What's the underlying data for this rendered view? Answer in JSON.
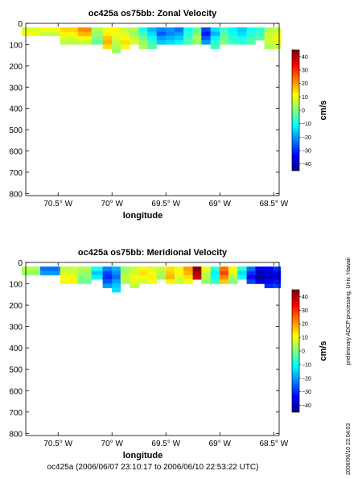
{
  "footer": "oc425a (2006/06/07 23:10:17 to 2006/06/10 22:53:22 UTC)",
  "side_text": {
    "processing": "preliminary ADCP processing,   Univ. Hawaii",
    "date": "2006/06/10 23:04:03"
  },
  "colors": {
    "colormap": [
      "#00008f",
      "#0000ff",
      "#0080ff",
      "#00ffff",
      "#80ff80",
      "#ffff00",
      "#ff8000",
      "#ff0000",
      "#800000"
    ],
    "contour": "#000000"
  },
  "chart_data": [
    {
      "type": "heatmap",
      "title": "oc425a os75bb: Zonal Velocity",
      "xlabel": "longitude",
      "ylabel": "",
      "xlim": [
        -70.8,
        -68.45
      ],
      "ylim": [
        810,
        0
      ],
      "x_ticks": [
        -70.5,
        -70.0,
        -69.5,
        -69.0,
        -68.5
      ],
      "x_tick_labels": [
        "70.5° W",
        "70° W",
        "69.5° W",
        "69° W",
        "68.5° W"
      ],
      "y_ticks": [
        0,
        100,
        200,
        300,
        400,
        500,
        600,
        700,
        800
      ],
      "y_tick_labels": [
        "0",
        "100",
        "200",
        "300",
        "400",
        "500",
        "600",
        "700",
        "800"
      ],
      "colorbar": {
        "label": "cm/s",
        "range": [
          -45,
          45
        ],
        "ticks": [
          40,
          30,
          20,
          10,
          0,
          -10,
          -20,
          -30,
          -40
        ],
        "tick_labels": [
          "40",
          "30",
          "20",
          "10",
          "0",
          "−10",
          "−20",
          "−30",
          "−40"
        ]
      },
      "depth_bins": [
        30,
        50,
        70,
        90,
        110,
        130
      ],
      "data": [
        {
          "x": -70.75,
          "v": [
            8,
            10
          ]
        },
        {
          "x": -70.58,
          "v": [
            10,
            6
          ]
        },
        {
          "x": -70.38,
          "v": [
            15,
            12,
            8,
            5
          ]
        },
        {
          "x": -70.25,
          "v": [
            22,
            18,
            12,
            6
          ]
        },
        {
          "x": -70.13,
          "v": [
            4,
            2,
            0,
            -2
          ]
        },
        {
          "x": -70.04,
          "v": [
            10,
            12,
            16,
            18,
            14
          ]
        },
        {
          "x": -69.96,
          "v": [
            12,
            10,
            8,
            6,
            4,
            2
          ]
        },
        {
          "x": -69.88,
          "v": [
            6,
            8,
            12,
            14,
            10
          ]
        },
        {
          "x": -69.79,
          "v": [
            4,
            2,
            6,
            8
          ]
        },
        {
          "x": -69.71,
          "v": [
            -10,
            -6,
            -2,
            2,
            4
          ]
        },
        {
          "x": -69.63,
          "v": [
            -18,
            -14,
            -10,
            -6,
            -4
          ]
        },
        {
          "x": -69.54,
          "v": [
            -22,
            -26,
            -20,
            -16
          ]
        },
        {
          "x": -69.46,
          "v": [
            -20,
            -22,
            -18,
            -14
          ]
        },
        {
          "x": -69.38,
          "v": [
            -24,
            -20,
            -16,
            -12
          ]
        },
        {
          "x": -69.29,
          "v": [
            -10,
            -8,
            -6,
            -4
          ]
        },
        {
          "x": -69.21,
          "v": [
            -2,
            0,
            4,
            2
          ]
        },
        {
          "x": -69.13,
          "v": [
            -28,
            -32,
            -26,
            -20
          ]
        },
        {
          "x": -69.04,
          "v": [
            -14,
            -18,
            -12,
            -8,
            -6
          ]
        },
        {
          "x": -68.96,
          "v": [
            -6,
            -4,
            -2,
            0
          ]
        },
        {
          "x": -68.88,
          "v": [
            -12,
            -10,
            -8,
            -6
          ]
        },
        {
          "x": -68.79,
          "v": [
            -16,
            -14,
            -10,
            -8
          ]
        },
        {
          "x": -68.71,
          "v": [
            -10,
            -8,
            -6,
            -4
          ]
        },
        {
          "x": -68.63,
          "v": [
            -8,
            -6,
            -4
          ]
        },
        {
          "x": -68.54,
          "v": [
            4,
            6,
            8,
            6,
            4
          ]
        },
        {
          "x": -68.47,
          "v": [
            6,
            8,
            10,
            8,
            6
          ]
        }
      ]
    },
    {
      "type": "heatmap",
      "title": "oc425a os75bb: Meridional Velocity",
      "xlabel": "longitude",
      "ylabel": "",
      "xlim": [
        -70.8,
        -68.45
      ],
      "ylim": [
        810,
        0
      ],
      "x_ticks": [
        -70.5,
        -70.0,
        -69.5,
        -69.0,
        -68.5
      ],
      "x_tick_labels": [
        "70.5° W",
        "70° W",
        "69.5° W",
        "69° W",
        "68.5° W"
      ],
      "y_ticks": [
        0,
        100,
        200,
        300,
        400,
        500,
        600,
        700,
        800
      ],
      "y_tick_labels": [
        "0",
        "100",
        "200",
        "300",
        "400",
        "500",
        "600",
        "700",
        "800"
      ],
      "colorbar": {
        "label": "cm/s",
        "range": [
          -45,
          45
        ],
        "ticks": [
          40,
          30,
          20,
          10,
          0,
          -10,
          -20,
          -30,
          -40
        ],
        "tick_labels": [
          "40",
          "30",
          "20",
          "10",
          "0",
          "−10",
          "−20",
          "−30",
          "−40"
        ]
      },
      "depth_bins": [
        30,
        50,
        70,
        90,
        110,
        130
      ],
      "data": [
        {
          "x": -70.75,
          "v": [
            4,
            2
          ]
        },
        {
          "x": -70.58,
          "v": [
            -24,
            -20
          ]
        },
        {
          "x": -70.38,
          "v": [
            6,
            8,
            10,
            12
          ]
        },
        {
          "x": -70.25,
          "v": [
            4,
            2,
            0,
            -2
          ]
        },
        {
          "x": -70.13,
          "v": [
            -10,
            -16,
            -12
          ]
        },
        {
          "x": -70.04,
          "v": [
            -22,
            -28,
            -30,
            -26,
            -20
          ]
        },
        {
          "x": -69.96,
          "v": [
            -18,
            -22,
            -24,
            -20,
            -16,
            -14
          ]
        },
        {
          "x": -69.88,
          "v": [
            2,
            4,
            6,
            4
          ]
        },
        {
          "x": -69.79,
          "v": [
            6,
            8,
            10,
            8,
            6
          ]
        },
        {
          "x": -69.71,
          "v": [
            12,
            14,
            10,
            8
          ]
        },
        {
          "x": -69.63,
          "v": [
            8,
            10,
            12,
            10
          ]
        },
        {
          "x": -69.54,
          "v": [
            6,
            4,
            2
          ]
        },
        {
          "x": -69.46,
          "v": [
            14,
            16,
            18,
            12
          ]
        },
        {
          "x": -69.38,
          "v": [
            10,
            12,
            8,
            6
          ]
        },
        {
          "x": -69.29,
          "v": [
            20,
            18,
            14,
            10
          ]
        },
        {
          "x": -69.21,
          "v": [
            44,
            42,
            38
          ]
        },
        {
          "x": -69.13,
          "v": [
            10,
            6,
            4,
            2
          ]
        },
        {
          "x": -69.04,
          "v": [
            -8,
            -12,
            -10,
            -6
          ]
        },
        {
          "x": -68.96,
          "v": [
            24,
            28,
            22,
            16
          ]
        },
        {
          "x": -68.88,
          "v": [
            12,
            8,
            4,
            0
          ]
        },
        {
          "x": -68.79,
          "v": [
            -8,
            -14,
            -10
          ]
        },
        {
          "x": -68.71,
          "v": [
            -24,
            -30,
            -34,
            -28
          ]
        },
        {
          "x": -68.63,
          "v": [
            -36,
            -40,
            -42,
            -38
          ]
        },
        {
          "x": -68.54,
          "v": [
            -34,
            -38,
            -40,
            -36,
            -30
          ]
        },
        {
          "x": -68.47,
          "v": [
            -30,
            -36,
            -38,
            -32,
            -28
          ]
        }
      ]
    }
  ]
}
